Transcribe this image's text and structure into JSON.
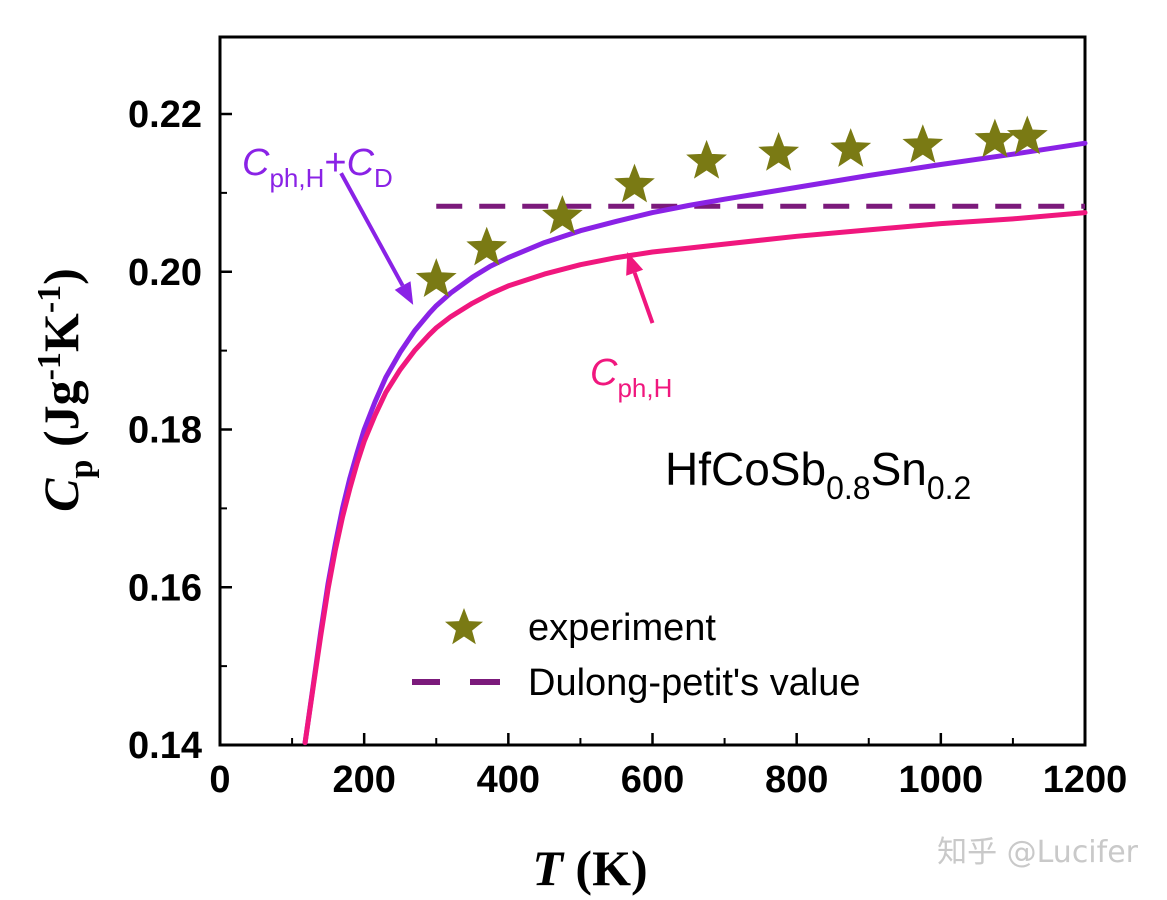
{
  "chart_data": {
    "type": "line",
    "xlabel_italic": "T",
    "xlabel_rest": "(K)",
    "ylabel_main": "C",
    "ylabel_sub": "p",
    "ylabel_units": "(Jg",
    "ylabel_exp1": "-1",
    "ylabel_unit2": "K",
    "ylabel_exp2": "-1",
    "ylabel_close": ")",
    "xlim": [
      0,
      1200
    ],
    "ylim": [
      0.14,
      0.23
    ],
    "xticks": [
      0,
      200,
      400,
      600,
      800,
      1000,
      1200
    ],
    "xtick_labels": [
      "0",
      "200",
      "400",
      "600",
      "800",
      "1000",
      "1200"
    ],
    "yticks": [
      0.14,
      0.16,
      0.18,
      0.2,
      0.22
    ],
    "ytick_labels": [
      "0.14",
      "0.16",
      "0.18",
      "0.20",
      "0.22"
    ],
    "sample": {
      "text_main": "HfCoSb",
      "sub1": "0.8",
      "text_mid": "Sn",
      "sub2": "0.2"
    },
    "series": [
      {
        "name": "experiment",
        "kind": "scatter",
        "marker": "star",
        "color": "#7a7a14",
        "x": [
          300,
          370,
          475,
          575,
          675,
          775,
          875,
          975,
          1075,
          1120
        ],
        "y": [
          0.199,
          0.203,
          0.207,
          0.211,
          0.214,
          0.215,
          0.2155,
          0.216,
          0.2167,
          0.2171
        ]
      },
      {
        "name": "Dulong-petit's value",
        "kind": "dashed",
        "color": "#7b1a7b",
        "x": [
          300,
          1200
        ],
        "y": [
          0.2083,
          0.2083
        ]
      },
      {
        "name": "C_ph,H + C_D",
        "kind": "line",
        "color": "#8a22e6",
        "x": [
          118,
          130,
          140,
          150,
          160,
          170,
          180,
          190,
          200,
          215,
          230,
          250,
          270,
          290,
          300,
          320,
          350,
          375,
          400,
          450,
          500,
          550,
          600,
          650,
          700,
          800,
          900,
          1000,
          1100,
          1200
        ],
        "y": [
          0.1403,
          0.148,
          0.1545,
          0.1605,
          0.1655,
          0.17,
          0.1738,
          0.177,
          0.18,
          0.1835,
          0.1866,
          0.1898,
          0.1925,
          0.1947,
          0.1957,
          0.1973,
          0.1993,
          0.2007,
          0.2018,
          0.2037,
          0.2052,
          0.2064,
          0.2075,
          0.2084,
          0.2092,
          0.2107,
          0.2122,
          0.2136,
          0.2149,
          0.2163
        ]
      },
      {
        "name": "C_ph,H",
        "kind": "line",
        "color": "#f0177e",
        "x": [
          118,
          130,
          140,
          150,
          160,
          170,
          180,
          190,
          200,
          215,
          230,
          250,
          270,
          290,
          300,
          320,
          350,
          375,
          400,
          450,
          500,
          550,
          600,
          650,
          700,
          800,
          900,
          1000,
          1100,
          1200
        ],
        "y": [
          0.1403,
          0.1478,
          0.154,
          0.1598,
          0.1647,
          0.1689,
          0.1725,
          0.1757,
          0.1785,
          0.1818,
          0.1847,
          0.1876,
          0.19,
          0.192,
          0.1929,
          0.1943,
          0.196,
          0.1972,
          0.1982,
          0.1997,
          0.2009,
          0.2018,
          0.2025,
          0.203,
          0.2035,
          0.2045,
          0.2053,
          0.2061,
          0.2067,
          0.2075
        ]
      }
    ],
    "annotations": {
      "combined": {
        "c1": "C",
        "sub1": "ph,H",
        "plus": "+",
        "c2": "C",
        "sub2": "D",
        "color": "#8a22e6",
        "arrow_from": [
          168,
          0.2125
        ],
        "arrow_to": [
          268,
          0.1958
        ]
      },
      "harmonic": {
        "c1": "C",
        "sub1": "ph,H",
        "color": "#f0177e",
        "arrow_from": [
          600,
          0.1935
        ],
        "arrow_to": [
          565,
          0.2025
        ]
      }
    },
    "legend": {
      "position": "lower-right",
      "items": [
        {
          "label": "experiment",
          "marker": "star",
          "color": "#7a7a14"
        },
        {
          "label": "Dulong-petit's value",
          "marker": "dash",
          "color": "#7b1a7b"
        }
      ]
    }
  },
  "watermark": "知乎 @Lucifer"
}
